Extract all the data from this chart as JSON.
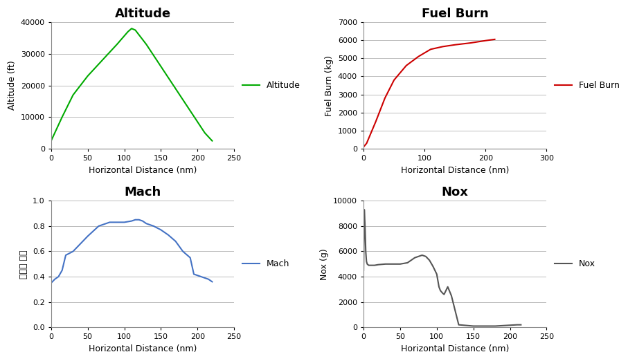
{
  "altitude": {
    "title": "Altitude",
    "xlabel": "Horizontal Distance (nm)",
    "ylabel": "Altitude (ft)",
    "color": "#00aa00",
    "xlim": [
      0,
      250
    ],
    "ylim": [
      0,
      40000
    ],
    "xticks": [
      0,
      50,
      100,
      150,
      200,
      250
    ],
    "yticks": [
      0,
      10000,
      20000,
      30000,
      40000
    ],
    "x": [
      0,
      5,
      15,
      30,
      50,
      70,
      90,
      105,
      110,
      115,
      130,
      150,
      170,
      190,
      210,
      220
    ],
    "y": [
      2500,
      5000,
      10000,
      17000,
      23000,
      28000,
      33000,
      37000,
      38000,
      37500,
      33000,
      26000,
      19000,
      12000,
      5000,
      2500
    ],
    "legend": "Altitude"
  },
  "fuelburn": {
    "title": "Fuel Burn",
    "xlabel": "Horizontal Distance (nm)",
    "ylabel": "Fuel Burn (kg)",
    "color": "#cc0000",
    "xlim": [
      0,
      300
    ],
    "ylim": [
      0,
      7000
    ],
    "xticks": [
      0,
      100,
      200,
      300
    ],
    "yticks": [
      0,
      1000,
      2000,
      3000,
      4000,
      5000,
      6000,
      7000
    ],
    "x": [
      0,
      5,
      10,
      20,
      35,
      50,
      70,
      90,
      110,
      130,
      150,
      175,
      200,
      215
    ],
    "y": [
      100,
      300,
      700,
      1500,
      2800,
      3800,
      4600,
      5100,
      5500,
      5650,
      5750,
      5850,
      5980,
      6050
    ],
    "legend": "Fuel Burn"
  },
  "mach": {
    "title": "Mach",
    "xlabel": "Horizontal Distance (nm)",
    "ylabel": "항공기 속도",
    "color": "#4472c4",
    "xlim": [
      0,
      250
    ],
    "ylim": [
      0,
      1
    ],
    "xticks": [
      0,
      50,
      100,
      150,
      200,
      250
    ],
    "yticks": [
      0,
      0.2,
      0.4,
      0.6,
      0.8,
      1.0
    ],
    "x": [
      0,
      5,
      10,
      15,
      20,
      30,
      50,
      65,
      75,
      80,
      90,
      100,
      110,
      115,
      120,
      125,
      130,
      140,
      150,
      160,
      170,
      180,
      190,
      195,
      200,
      205,
      210,
      215,
      220
    ],
    "y": [
      0.35,
      0.38,
      0.4,
      0.45,
      0.57,
      0.6,
      0.72,
      0.8,
      0.82,
      0.83,
      0.83,
      0.83,
      0.84,
      0.85,
      0.85,
      0.84,
      0.82,
      0.8,
      0.77,
      0.73,
      0.68,
      0.6,
      0.55,
      0.42,
      0.41,
      0.4,
      0.39,
      0.38,
      0.36
    ],
    "legend": "Mach"
  },
  "nox": {
    "title": "Nox",
    "xlabel": "Horizontal Distance (nm)",
    "ylabel": "Nox (g)",
    "color": "#555555",
    "xlim": [
      0,
      250
    ],
    "ylim": [
      0,
      10000
    ],
    "xticks": [
      0,
      50,
      100,
      150,
      200,
      250
    ],
    "yticks": [
      0,
      2000,
      4000,
      6000,
      8000,
      10000
    ],
    "x": [
      0,
      1,
      2,
      3,
      4,
      5,
      7,
      10,
      12,
      15,
      20,
      30,
      40,
      50,
      60,
      65,
      70,
      75,
      80,
      85,
      90,
      95,
      100,
      103,
      105,
      108,
      110,
      115,
      120,
      130,
      140,
      150,
      160,
      180,
      210,
      215
    ],
    "y": [
      4500,
      9300,
      8000,
      6000,
      5200,
      5000,
      4900,
      4900,
      4900,
      4900,
      4950,
      5000,
      5000,
      5000,
      5100,
      5300,
      5500,
      5600,
      5700,
      5600,
      5300,
      4800,
      4200,
      3200,
      2900,
      2700,
      2600,
      3200,
      2500,
      200,
      150,
      100,
      100,
      100,
      200,
      200
    ],
    "legend": "Nox"
  },
  "background_color": "#ffffff",
  "grid_color": "#bbbbbb",
  "title_fontsize": 13,
  "label_fontsize": 9,
  "tick_fontsize": 8
}
